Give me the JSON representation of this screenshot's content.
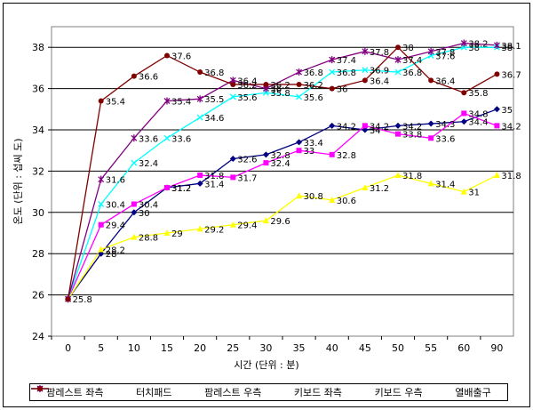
{
  "chart_data": {
    "type": "line",
    "title": "",
    "xlabel": "시간 (단위 : 분)",
    "ylabel": "온도 (단위 : 섭씨 도)",
    "x": [
      0,
      5,
      10,
      15,
      20,
      25,
      30,
      35,
      40,
      45,
      50,
      55,
      60,
      90
    ],
    "x_tick_labels": [
      "0",
      "5",
      "10",
      "15",
      "20",
      "25",
      "30",
      "35",
      "40",
      "45",
      "50",
      "55",
      "60",
      "90"
    ],
    "ylim": [
      24,
      39
    ],
    "y_ticks": [
      24,
      26,
      28,
      30,
      32,
      34,
      36,
      38
    ],
    "grid": "horizontal",
    "legend_position": "bottom",
    "series": [
      {
        "name": "팜레스트 좌측",
        "color": "#000080",
        "marker": "diamond",
        "values": [
          25.8,
          28,
          30,
          31.2,
          31.4,
          32.6,
          32.8,
          33.4,
          34.2,
          34,
          34.2,
          34.3,
          34.4,
          35
        ],
        "labels": [
          "25.8",
          "28",
          "30",
          "31.2",
          "31.4",
          "32.6",
          "32.8",
          "33.4",
          "34.2",
          "34",
          "34.2",
          "34.3",
          "34.4",
          "35"
        ]
      },
      {
        "name": "터치패드",
        "color": "#ff00ff",
        "marker": "square",
        "values": [
          25.8,
          29.4,
          30.4,
          31.2,
          31.8,
          31.7,
          32.4,
          33,
          32.8,
          34.2,
          33.8,
          33.6,
          34.8,
          34.2
        ],
        "labels": [
          "25.8",
          "29.4",
          "30.4",
          "31.2",
          "31.8",
          "31.7",
          "32.4",
          "33",
          "32.8",
          "34.2",
          "33.8",
          "33.6",
          "34.8",
          "34.2"
        ]
      },
      {
        "name": "팜레스트 우측",
        "color": "#ffff00",
        "marker": "triangle",
        "values": [
          25.8,
          28.2,
          28.8,
          29,
          29.2,
          29.4,
          29.6,
          30.8,
          30.6,
          31.2,
          31.8,
          31.4,
          31,
          31.8
        ],
        "labels": [
          "25.8",
          "28.2",
          "28.8",
          "29",
          "29.2",
          "29.4",
          "29.6",
          "30.8",
          "30.6",
          "31.2",
          "31.8",
          "31.4",
          "31",
          "31.8"
        ]
      },
      {
        "name": "키보드 좌측",
        "color": "#00ffff",
        "marker": "x",
        "values": [
          25.8,
          30.4,
          32.4,
          33.6,
          34.6,
          35.6,
          35.8,
          35.6,
          36.8,
          36.9,
          36.8,
          37.6,
          38,
          38
        ],
        "labels": [
          "25.8",
          "30.4",
          "32.4",
          "33.6",
          "34.6",
          "35.6",
          "35.8",
          "35.6",
          "36.8",
          "36.9",
          "36.8",
          "37.6",
          "38",
          "38"
        ]
      },
      {
        "name": "키보드 우측",
        "color": "#800080",
        "marker": "star",
        "values": [
          25.8,
          31.6,
          33.6,
          35.4,
          35.5,
          36.4,
          36,
          36.8,
          37.4,
          37.8,
          37.4,
          37.8,
          38.2,
          38.1
        ],
        "labels": [
          "25.8",
          "31.6",
          "33.6",
          "35.4",
          "35.5",
          "36.4",
          "36",
          "36.8",
          "37.4",
          "37.8",
          "37.4",
          "37.8",
          "38.2",
          "38.1"
        ]
      },
      {
        "name": "열배출구",
        "color": "#800000",
        "marker": "circle",
        "values": [
          25.8,
          35.4,
          36.6,
          37.6,
          36.8,
          36.2,
          36.2,
          36.2,
          36,
          36.4,
          38,
          36.4,
          35.8,
          36.7
        ],
        "labels": [
          "25.8",
          "35.4",
          "36.6",
          "37.6",
          "36.8",
          "36.2",
          "36.2",
          "36.2",
          "36",
          "36.4",
          "38",
          "36.4",
          "35.8",
          "36.7"
        ]
      }
    ]
  }
}
